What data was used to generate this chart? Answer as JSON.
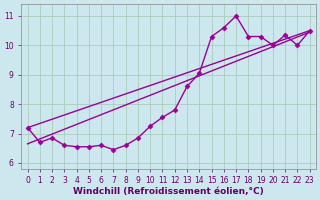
{
  "bg_color": "#cce8ee",
  "grid_color": "#aaccbb",
  "line_color": "#990099",
  "marker": "D",
  "markersize": 2.5,
  "linewidth": 1.0,
  "xlabel": "Windchill (Refroidissement éolien,°C)",
  "xlabel_fontsize": 6.5,
  "ylim": [
    5.8,
    11.4
  ],
  "xlim": [
    -0.5,
    23.5
  ],
  "yticks": [
    6,
    7,
    8,
    9,
    10,
    11
  ],
  "xticks": [
    0,
    1,
    2,
    3,
    4,
    5,
    6,
    7,
    8,
    9,
    10,
    11,
    12,
    13,
    14,
    15,
    16,
    17,
    18,
    19,
    20,
    21,
    22,
    23
  ],
  "tick_fontsize": 5.5,
  "series1_x": [
    0,
    1,
    2,
    3,
    4,
    5,
    6,
    7,
    8,
    9,
    10,
    11,
    12,
    13,
    14,
    15,
    16,
    17,
    18,
    19,
    20,
    21,
    22,
    23
  ],
  "series1_y": [
    7.2,
    6.7,
    6.85,
    6.6,
    6.55,
    6.55,
    6.6,
    6.45,
    6.6,
    6.85,
    7.25,
    7.55,
    7.8,
    8.6,
    9.05,
    10.3,
    10.6,
    11.0,
    10.3,
    10.3,
    10.0,
    10.35,
    10.0,
    10.5
  ],
  "trend1_x": [
    0,
    23
  ],
  "trend1_y": [
    7.2,
    10.5
  ],
  "trend2_x": [
    0,
    23
  ],
  "trend2_y": [
    6.65,
    10.45
  ]
}
